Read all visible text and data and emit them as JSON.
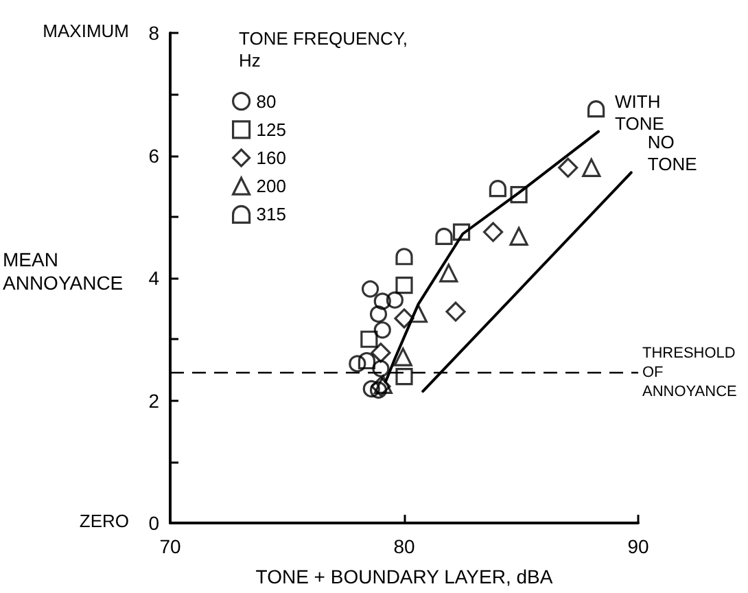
{
  "chart_data": {
    "type": "scatter",
    "xlabel": "TONE + BOUNDARY LAYER, dBA",
    "ylabel": "MEAN ANNOYANCE",
    "legend_title": "TONE FREQUENCY, Hz",
    "legend": "top left",
    "xlim": [
      70,
      90
    ],
    "xticks": [
      70,
      80,
      90
    ],
    "ylim": [
      0,
      8
    ],
    "yticks": [
      0,
      {
        "value": 1,
        "label": null
      },
      2,
      {
        "value": 3,
        "label": null
      },
      4,
      {
        "value": 5,
        "label": null
      },
      6,
      {
        "value": 7,
        "label": null
      },
      8
    ],
    "grid": false,
    "annotations": [
      "MAXIMUM",
      "ZERO"
    ],
    "ref_lines": [
      {
        "axis": "y",
        "value": 2.45,
        "label": "THRESHOLD OF ANNOYANCE",
        "line_style": "dashed",
        "color": "#000000"
      }
    ],
    "series": [
      {
        "name": "80",
        "color": "#000000",
        "marker": "circle",
        "x": [
          78.55,
          79.07,
          78.9,
          79.07,
          78.0,
          79.0,
          78.6,
          78.9,
          79.6
        ],
        "values": [
          3.82,
          3.62,
          3.41,
          3.15,
          2.6,
          2.52,
          2.19,
          2.17,
          3.64
        ]
      },
      {
        "name": "125",
        "color": "#000000",
        "marker": "square",
        "x": [
          80.0,
          78.5,
          80.0,
          84.9,
          82.45
        ],
        "values": [
          3.88,
          3.0,
          2.39,
          5.36,
          4.75
        ]
      },
      {
        "name": "160",
        "color": "#000000",
        "marker": "diamond",
        "x": [
          80.0,
          79.0,
          82.2,
          79.0,
          83.8,
          87.0
        ],
        "values": [
          3.34,
          2.78,
          3.45,
          2.23,
          4.75,
          5.8
        ]
      },
      {
        "name": "200",
        "color": "#000000",
        "marker": "triangle",
        "x": [
          81.9,
          80.6,
          79.95,
          79.1,
          84.9,
          88.0
        ],
        "values": [
          4.08,
          3.42,
          2.71,
          2.26,
          4.68,
          5.8
        ]
      },
      {
        "name": "315",
        "color": "#000000",
        "marker": "semicircle",
        "x": [
          80.0,
          81.7,
          84.0,
          88.2,
          78.4
        ],
        "values": [
          4.35,
          4.68,
          5.46,
          6.76,
          2.65
        ]
      },
      {
        "name": "WITH TONE",
        "type": "line",
        "color": "#000000",
        "marker": "none",
        "line_style": "solid",
        "x": [
          79.2,
          79.6,
          80.6,
          82.5,
          84.9,
          88.3
        ],
        "values": [
          2.3,
          2.68,
          3.57,
          4.72,
          5.39,
          6.39
        ]
      },
      {
        "name": "NO TONE",
        "type": "line",
        "color": "#000000",
        "marker": "none",
        "line_style": "solid",
        "x": [
          80.8,
          89.7
        ],
        "values": [
          2.15,
          5.72
        ]
      }
    ]
  }
}
